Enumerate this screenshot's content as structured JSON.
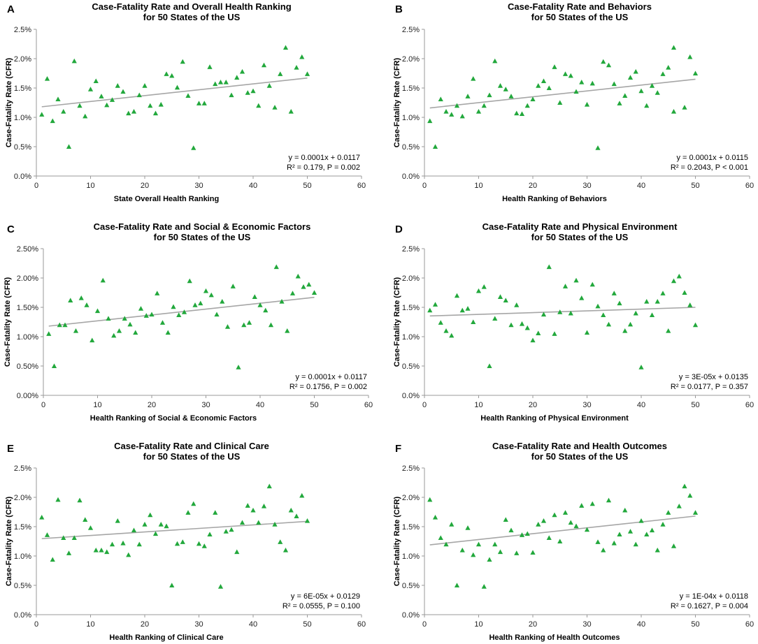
{
  "chart_data": [
    {
      "type": "scatter",
      "panel_label": "A",
      "title": "Case-Fatality Rate and Overall Health Ranking",
      "subtitle": "for 50 States of the US",
      "xlabel": "State Overall Health Ranking",
      "ylabel": "Case-Fatality Rate (CFR)",
      "xlim": [
        0,
        60
      ],
      "ylim": [
        0,
        0.025
      ],
      "x_ticks": [
        "0",
        "10",
        "20",
        "30",
        "40",
        "50",
        "60"
      ],
      "y_ticks": [
        "0.0%",
        "0.5%",
        "1.0%",
        "1.5%",
        "2.0%",
        "2.5%"
      ],
      "trendline": {
        "slope": 0.0001,
        "intercept": 0.0117
      },
      "annotation": [
        "y = 0.0001x + 0.0117",
        "R² = 0.179, P = 0.002"
      ],
      "marker_color": "#22a83c",
      "points": [
        [
          1,
          1.05
        ],
        [
          2,
          1.66
        ],
        [
          3,
          0.94
        ],
        [
          4,
          1.31
        ],
        [
          5,
          1.1
        ],
        [
          6,
          0.5
        ],
        [
          7,
          1.96
        ],
        [
          8,
          1.2
        ],
        [
          9,
          1.02
        ],
        [
          10,
          1.48
        ],
        [
          11,
          1.62
        ],
        [
          12,
          1.36
        ],
        [
          13,
          1.21
        ],
        [
          14,
          1.3
        ],
        [
          15,
          1.54
        ],
        [
          16,
          1.44
        ],
        [
          17,
          1.07
        ],
        [
          18,
          1.1
        ],
        [
          19,
          1.38
        ],
        [
          20,
          1.54
        ],
        [
          21,
          1.2
        ],
        [
          22,
          1.07
        ],
        [
          23,
          1.22
        ],
        [
          24,
          1.74
        ],
        [
          25,
          1.71
        ],
        [
          26,
          1.51
        ],
        [
          27,
          1.95
        ],
        [
          28,
          1.37
        ],
        [
          29,
          0.48
        ],
        [
          30,
          1.24
        ],
        [
          31,
          1.24
        ],
        [
          32,
          1.86
        ],
        [
          33,
          1.57
        ],
        [
          34,
          1.6
        ],
        [
          35,
          1.6
        ],
        [
          36,
          1.38
        ],
        [
          37,
          1.68
        ],
        [
          38,
          1.78
        ],
        [
          39,
          1.42
        ],
        [
          40,
          1.45
        ],
        [
          41,
          1.2
        ],
        [
          42,
          1.89
        ],
        [
          43,
          1.54
        ],
        [
          44,
          1.17
        ],
        [
          45,
          1.74
        ],
        [
          46,
          2.19
        ],
        [
          47,
          1.1
        ],
        [
          48,
          1.85
        ],
        [
          49,
          2.03
        ],
        [
          50,
          1.74
        ]
      ]
    },
    {
      "type": "scatter",
      "panel_label": "B",
      "title": "Case-Fatality Rate and Behaviors",
      "subtitle": "for 50 States of the US",
      "xlabel": "Health Ranking of Behaviors",
      "ylabel": "Case-Fatality Rate (CFR)",
      "xlim": [
        0,
        60
      ],
      "ylim": [
        0,
        0.025
      ],
      "x_ticks": [
        "0",
        "10",
        "20",
        "30",
        "40",
        "50",
        "60"
      ],
      "y_ticks": [
        "0.0%",
        "0.5%",
        "1.0%",
        "1.5%",
        "2.0%",
        "2.5%"
      ],
      "trendline": {
        "slope": 0.0001,
        "intercept": 0.0115
      },
      "annotation": [
        "y = 0.0001x + 0.0115",
        "R² = 0.2043, P < 0.001"
      ],
      "marker_color": "#22a83c",
      "points": [
        [
          1,
          0.94
        ],
        [
          2,
          0.5
        ],
        [
          3,
          1.31
        ],
        [
          4,
          1.1
        ],
        [
          5,
          1.05
        ],
        [
          6,
          1.2
        ],
        [
          7,
          1.02
        ],
        [
          8,
          1.36
        ],
        [
          9,
          1.66
        ],
        [
          10,
          1.1
        ],
        [
          11,
          1.2
        ],
        [
          12,
          1.38
        ],
        [
          13,
          1.96
        ],
        [
          14,
          1.54
        ],
        [
          15,
          1.48
        ],
        [
          16,
          1.36
        ],
        [
          17,
          1.07
        ],
        [
          18,
          1.06
        ],
        [
          19,
          1.2
        ],
        [
          20,
          1.31
        ],
        [
          21,
          1.54
        ],
        [
          22,
          1.62
        ],
        [
          23,
          1.5
        ],
        [
          24,
          1.86
        ],
        [
          25,
          1.25
        ],
        [
          26,
          1.74
        ],
        [
          27,
          1.71
        ],
        [
          28,
          1.44
        ],
        [
          29,
          1.6
        ],
        [
          30,
          1.22
        ],
        [
          31,
          1.58
        ],
        [
          32,
          0.48
        ],
        [
          33,
          1.95
        ],
        [
          34,
          1.89
        ],
        [
          35,
          1.57
        ],
        [
          36,
          1.24
        ],
        [
          37,
          1.37
        ],
        [
          38,
          1.68
        ],
        [
          39,
          1.78
        ],
        [
          40,
          1.45
        ],
        [
          41,
          1.2
        ],
        [
          42,
          1.54
        ],
        [
          43,
          1.42
        ],
        [
          44,
          1.74
        ],
        [
          45,
          1.85
        ],
        [
          46,
          2.19
        ],
        [
          46,
          1.1
        ],
        [
          48,
          1.17
        ],
        [
          49,
          2.03
        ],
        [
          50,
          1.75
        ]
      ]
    },
    {
      "type": "scatter",
      "panel_label": "C",
      "title": "Case-Fatality Rate and Social & Economic Factors",
      "subtitle": "for 50 States of the US",
      "xlabel": "Health Ranking of Social & Economic Factors",
      "ylabel": "Case-Fatality Rate (CFR)",
      "xlim": [
        0,
        60
      ],
      "ylim": [
        0,
        0.025
      ],
      "x_ticks": [
        "0",
        "10",
        "20",
        "30",
        "40",
        "50",
        "60"
      ],
      "y_ticks": [
        "0.00%",
        "0.50%",
        "1.00%",
        "1.50%",
        "2.00%",
        "2.50%"
      ],
      "trendline": {
        "slope": 0.0001,
        "intercept": 0.0117
      },
      "annotation": [
        "y = 0.0001x + 0.0117",
        "R² = 0.1756, P = 0.002"
      ],
      "marker_color": "#22a83c",
      "points": [
        [
          1,
          1.05
        ],
        [
          2,
          0.5
        ],
        [
          3,
          1.2
        ],
        [
          4,
          1.2
        ],
        [
          5,
          1.62
        ],
        [
          6,
          1.1
        ],
        [
          7,
          1.66
        ],
        [
          8,
          1.54
        ],
        [
          9,
          0.94
        ],
        [
          10,
          1.44
        ],
        [
          11,
          1.96
        ],
        [
          12,
          1.31
        ],
        [
          13,
          1.02
        ],
        [
          14,
          1.1
        ],
        [
          15,
          1.31
        ],
        [
          16,
          1.21
        ],
        [
          17,
          1.07
        ],
        [
          18,
          1.48
        ],
        [
          19,
          1.36
        ],
        [
          20,
          1.38
        ],
        [
          21,
          1.74
        ],
        [
          22,
          1.24
        ],
        [
          23,
          1.07
        ],
        [
          24,
          1.51
        ],
        [
          25,
          1.37
        ],
        [
          26,
          1.42
        ],
        [
          27,
          1.95
        ],
        [
          28,
          1.54
        ],
        [
          29,
          1.57
        ],
        [
          30,
          1.78
        ],
        [
          31,
          1.71
        ],
        [
          32,
          1.38
        ],
        [
          33,
          1.6
        ],
        [
          34,
          1.17
        ],
        [
          35,
          1.86
        ],
        [
          36,
          0.48
        ],
        [
          37,
          1.2
        ],
        [
          38,
          1.24
        ],
        [
          39,
          1.68
        ],
        [
          40,
          1.54
        ],
        [
          41,
          1.45
        ],
        [
          42,
          1.2
        ],
        [
          43,
          2.19
        ],
        [
          44,
          1.6
        ],
        [
          45,
          1.1
        ],
        [
          46,
          1.74
        ],
        [
          47,
          2.03
        ],
        [
          48,
          1.85
        ],
        [
          49,
          1.89
        ],
        [
          50,
          1.75
        ]
      ]
    },
    {
      "type": "scatter",
      "panel_label": "D",
      "title": "Case-Fatality Rate and Physical Environment",
      "subtitle": "for 50 States of the US",
      "xlabel": "Health Ranking of Physical Environment",
      "ylabel": "Case-Fatality Rate (CFR)",
      "xlim": [
        0,
        60
      ],
      "ylim": [
        0,
        0.025
      ],
      "x_ticks": [
        "0",
        "10",
        "20",
        "30",
        "40",
        "50",
        "60"
      ],
      "y_ticks": [
        "0.0%",
        "0.5%",
        "1.0%",
        "1.5%",
        "2.0%",
        "2.5%"
      ],
      "trendline": {
        "slope": 3e-05,
        "intercept": 0.0135
      },
      "annotation": [
        "y = 3E-05x + 0.0135",
        "R² = 0.0177, P = 0.357"
      ],
      "marker_color": "#22a83c",
      "points": [
        [
          1,
          1.45
        ],
        [
          2,
          1.55
        ],
        [
          3,
          1.24
        ],
        [
          4,
          1.1
        ],
        [
          5,
          1.02
        ],
        [
          6,
          1.7
        ],
        [
          7,
          1.45
        ],
        [
          8,
          1.48
        ],
        [
          9,
          1.25
        ],
        [
          10,
          1.78
        ],
        [
          11,
          1.85
        ],
        [
          12,
          0.5
        ],
        [
          13,
          1.31
        ],
        [
          14,
          1.68
        ],
        [
          15,
          1.62
        ],
        [
          16,
          1.2
        ],
        [
          17,
          1.54
        ],
        [
          18,
          1.22
        ],
        [
          19,
          1.15
        ],
        [
          20,
          0.94
        ],
        [
          21,
          1.06
        ],
        [
          22,
          1.38
        ],
        [
          23,
          2.19
        ],
        [
          24,
          1.05
        ],
        [
          25,
          1.42
        ],
        [
          26,
          1.86
        ],
        [
          27,
          1.4
        ],
        [
          28,
          1.96
        ],
        [
          29,
          1.66
        ],
        [
          30,
          1.07
        ],
        [
          31,
          1.89
        ],
        [
          32,
          1.52
        ],
        [
          33,
          1.37
        ],
        [
          34,
          1.21
        ],
        [
          35,
          1.74
        ],
        [
          36,
          1.57
        ],
        [
          37,
          1.1
        ],
        [
          38,
          1.21
        ],
        [
          39,
          1.4
        ],
        [
          40,
          0.48
        ],
        [
          41,
          1.6
        ],
        [
          42,
          1.37
        ],
        [
          43,
          1.6
        ],
        [
          44,
          1.74
        ],
        [
          45,
          1.1
        ],
        [
          46,
          1.95
        ],
        [
          47,
          2.03
        ],
        [
          48,
          1.75
        ],
        [
          49,
          1.54
        ],
        [
          50,
          1.2
        ]
      ]
    },
    {
      "type": "scatter",
      "panel_label": "E",
      "title": "Case-Fatality Rate and Clinical Care",
      "subtitle": "for 50 States of the US",
      "xlabel": "Health Ranking of Clinical Care",
      "ylabel": "Case-Fatality Rate (CFR)",
      "xlim": [
        0,
        60
      ],
      "ylim": [
        0,
        0.025
      ],
      "x_ticks": [
        "0",
        "10",
        "20",
        "30",
        "40",
        "50",
        "60"
      ],
      "y_ticks": [
        "0.0%",
        "0.5%",
        "1.0%",
        "1.5%",
        "2.0%",
        "2.5%"
      ],
      "trendline": {
        "slope": 6e-05,
        "intercept": 0.0129
      },
      "annotation": [
        "y = 6E-05x + 0.0129",
        "R² = 0.0555, P = 0.100"
      ],
      "marker_color": "#22a83c",
      "points": [
        [
          1,
          1.66
        ],
        [
          2,
          1.36
        ],
        [
          3,
          0.94
        ],
        [
          4,
          1.96
        ],
        [
          5,
          1.31
        ],
        [
          6,
          1.05
        ],
        [
          7,
          1.31
        ],
        [
          8,
          1.95
        ],
        [
          9,
          1.62
        ],
        [
          10,
          1.48
        ],
        [
          11,
          1.1
        ],
        [
          12,
          1.1
        ],
        [
          13,
          1.07
        ],
        [
          14,
          1.2
        ],
        [
          15,
          1.6
        ],
        [
          16,
          1.22
        ],
        [
          17,
          1.02
        ],
        [
          18,
          1.44
        ],
        [
          19,
          1.2
        ],
        [
          20,
          1.54
        ],
        [
          21,
          1.7
        ],
        [
          22,
          1.38
        ],
        [
          23,
          1.54
        ],
        [
          24,
          1.51
        ],
        [
          25,
          0.5
        ],
        [
          26,
          1.21
        ],
        [
          27,
          1.24
        ],
        [
          28,
          1.74
        ],
        [
          29,
          1.89
        ],
        [
          30,
          1.21
        ],
        [
          31,
          1.17
        ],
        [
          32,
          1.37
        ],
        [
          33,
          1.74
        ],
        [
          34,
          0.48
        ],
        [
          35,
          1.42
        ],
        [
          36,
          1.45
        ],
        [
          37,
          1.07
        ],
        [
          38,
          1.57
        ],
        [
          39,
          1.86
        ],
        [
          40,
          1.78
        ],
        [
          41,
          1.57
        ],
        [
          42,
          1.85
        ],
        [
          43,
          2.19
        ],
        [
          44,
          1.54
        ],
        [
          45,
          1.24
        ],
        [
          46,
          1.1
        ],
        [
          47,
          1.78
        ],
        [
          48,
          1.68
        ],
        [
          49,
          2.03
        ],
        [
          50,
          1.6
        ]
      ]
    },
    {
      "type": "scatter",
      "panel_label": "F",
      "title": "Case-Fatality Rate and Health Outcomes",
      "subtitle": "for 50 States of the US",
      "xlabel": "Health Ranking of Health Outcomes",
      "ylabel": "Case-Fatality Rate (CFR)",
      "xlim": [
        0,
        60
      ],
      "ylim": [
        0,
        0.025
      ],
      "x_ticks": [
        "0",
        "10",
        "20",
        "30",
        "40",
        "50",
        "60"
      ],
      "y_ticks": [
        "0.0%",
        "0.5%",
        "1.0%",
        "1.5%",
        "2.0%",
        "2.5%"
      ],
      "trendline": {
        "slope": 0.0001,
        "intercept": 0.0118
      },
      "annotation": [
        "y = 1E-04x + 0.0118",
        "R² = 0.1627, P = 0.004"
      ],
      "marker_color": "#22a83c",
      "points": [
        [
          1,
          1.96
        ],
        [
          2,
          1.66
        ],
        [
          3,
          1.31
        ],
        [
          4,
          1.2
        ],
        [
          5,
          1.54
        ],
        [
          6,
          0.5
        ],
        [
          7,
          1.1
        ],
        [
          8,
          1.48
        ],
        [
          9,
          1.02
        ],
        [
          10,
          1.2
        ],
        [
          11,
          0.48
        ],
        [
          12,
          0.94
        ],
        [
          13,
          1.2
        ],
        [
          14,
          1.07
        ],
        [
          15,
          1.62
        ],
        [
          16,
          1.44
        ],
        [
          17,
          1.05
        ],
        [
          18,
          1.36
        ],
        [
          19,
          1.38
        ],
        [
          20,
          1.06
        ],
        [
          21,
          1.54
        ],
        [
          22,
          1.6
        ],
        [
          23,
          1.31
        ],
        [
          24,
          1.7
        ],
        [
          25,
          1.25
        ],
        [
          26,
          1.74
        ],
        [
          27,
          1.57
        ],
        [
          28,
          1.51
        ],
        [
          29,
          1.86
        ],
        [
          30,
          1.45
        ],
        [
          31,
          1.89
        ],
        [
          32,
          1.24
        ],
        [
          33,
          1.1
        ],
        [
          34,
          1.95
        ],
        [
          35,
          1.22
        ],
        [
          36,
          1.37
        ],
        [
          37,
          1.78
        ],
        [
          38,
          1.42
        ],
        [
          39,
          1.2
        ],
        [
          40,
          1.6
        ],
        [
          41,
          1.37
        ],
        [
          42,
          1.44
        ],
        [
          43,
          1.1
        ],
        [
          44,
          1.54
        ],
        [
          45,
          1.74
        ],
        [
          46,
          1.17
        ],
        [
          47,
          1.85
        ],
        [
          48,
          2.19
        ],
        [
          49,
          2.03
        ],
        [
          50,
          1.74
        ]
      ]
    }
  ]
}
